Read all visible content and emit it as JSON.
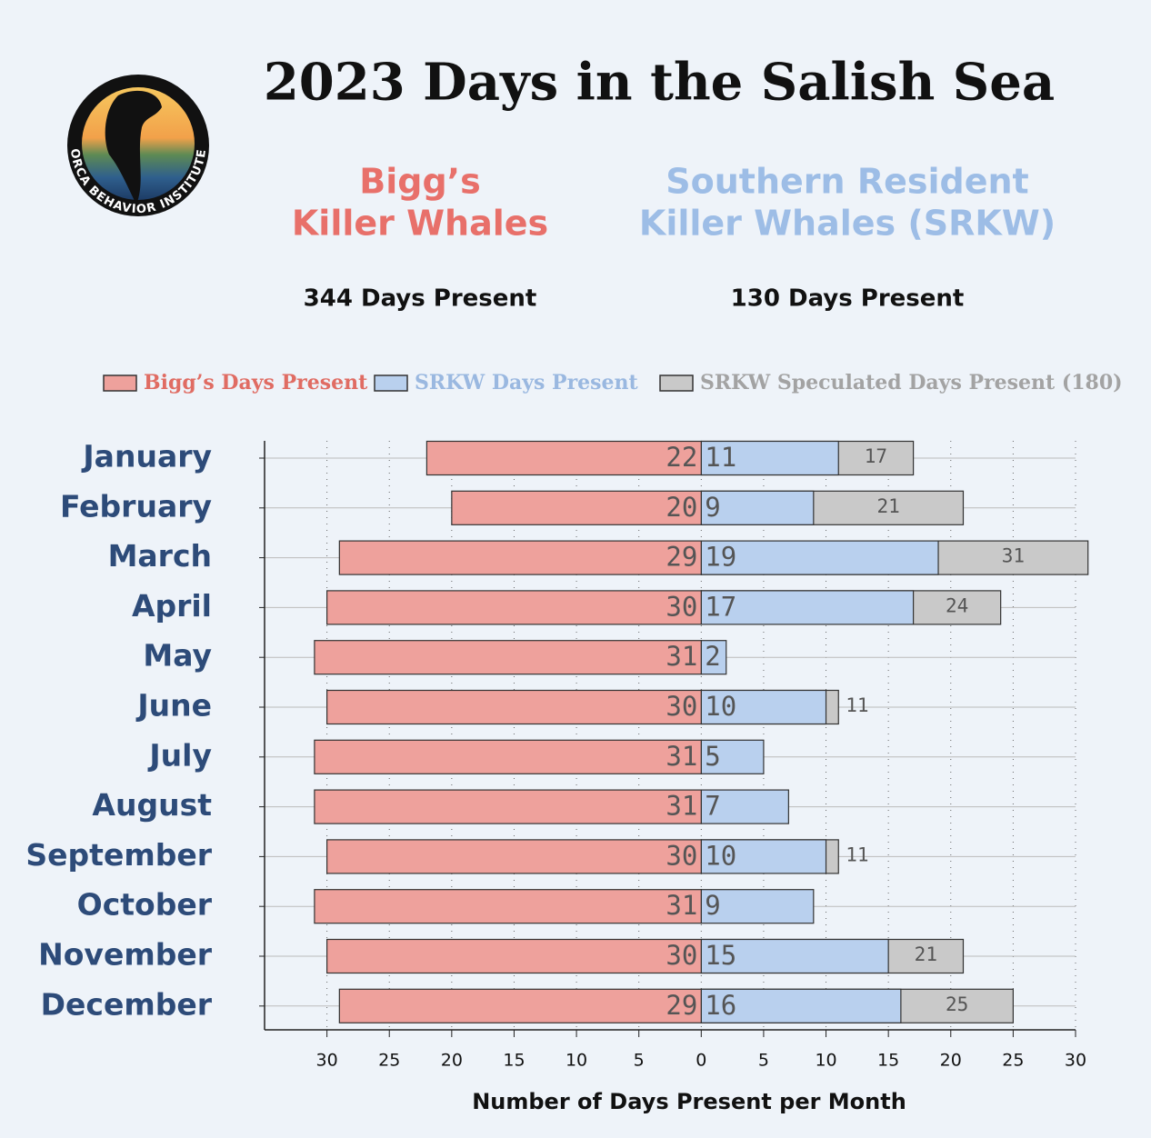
{
  "chart_data": {
    "type": "diverging_bar",
    "title": "2023  Days in the Salish Sea",
    "logo_text": "ORCA BEHAVIOR INSTITUTE",
    "panels": [
      {
        "lines": [
          "Bigg’s",
          "Killer Whales"
        ],
        "color": "#e8706a",
        "summary": "344 Days Present"
      },
      {
        "lines": [
          "Southern Resident",
          "Killer Whales (SRKW)"
        ],
        "color": "#9dbde6",
        "summary": "130 Days Present"
      }
    ],
    "categories": [
      "January",
      "February",
      "March",
      "April",
      "May",
      "June",
      "July",
      "August",
      "September",
      "October",
      "November",
      "December"
    ],
    "series": [
      {
        "name": "Bigg’s Days Present",
        "color": "#eea19c",
        "text_color": "#e06c63",
        "side": "left",
        "values": [
          22,
          20,
          29,
          30,
          31,
          30,
          31,
          31,
          30,
          31,
          30,
          29
        ]
      },
      {
        "name": "SRKW Days Present",
        "color": "#b9d0ee",
        "text_color": "#9ab8e0",
        "side": "right",
        "values": [
          11,
          9,
          19,
          17,
          2,
          10,
          5,
          7,
          10,
          9,
          15,
          16
        ]
      },
      {
        "name": "SRKW Speculated Days Present (180)",
        "color": "#c9c9c9",
        "text_color": "#a3a3a3",
        "side": "right",
        "values": [
          17,
          21,
          31,
          24,
          null,
          11,
          null,
          null,
          11,
          null,
          21,
          25
        ]
      }
    ],
    "xlim": [
      -35,
      30
    ],
    "xticks": [
      {
        "value": -30,
        "label": "30"
      },
      {
        "value": -25,
        "label": "25"
      },
      {
        "value": -20,
        "label": "20"
      },
      {
        "value": -15,
        "label": "15"
      },
      {
        "value": -10,
        "label": "10"
      },
      {
        "value": -5,
        "label": "5"
      },
      0,
      5,
      10,
      15,
      20,
      25,
      30
    ],
    "xlabel": "Number of Days Present per Month",
    "grid": true
  }
}
